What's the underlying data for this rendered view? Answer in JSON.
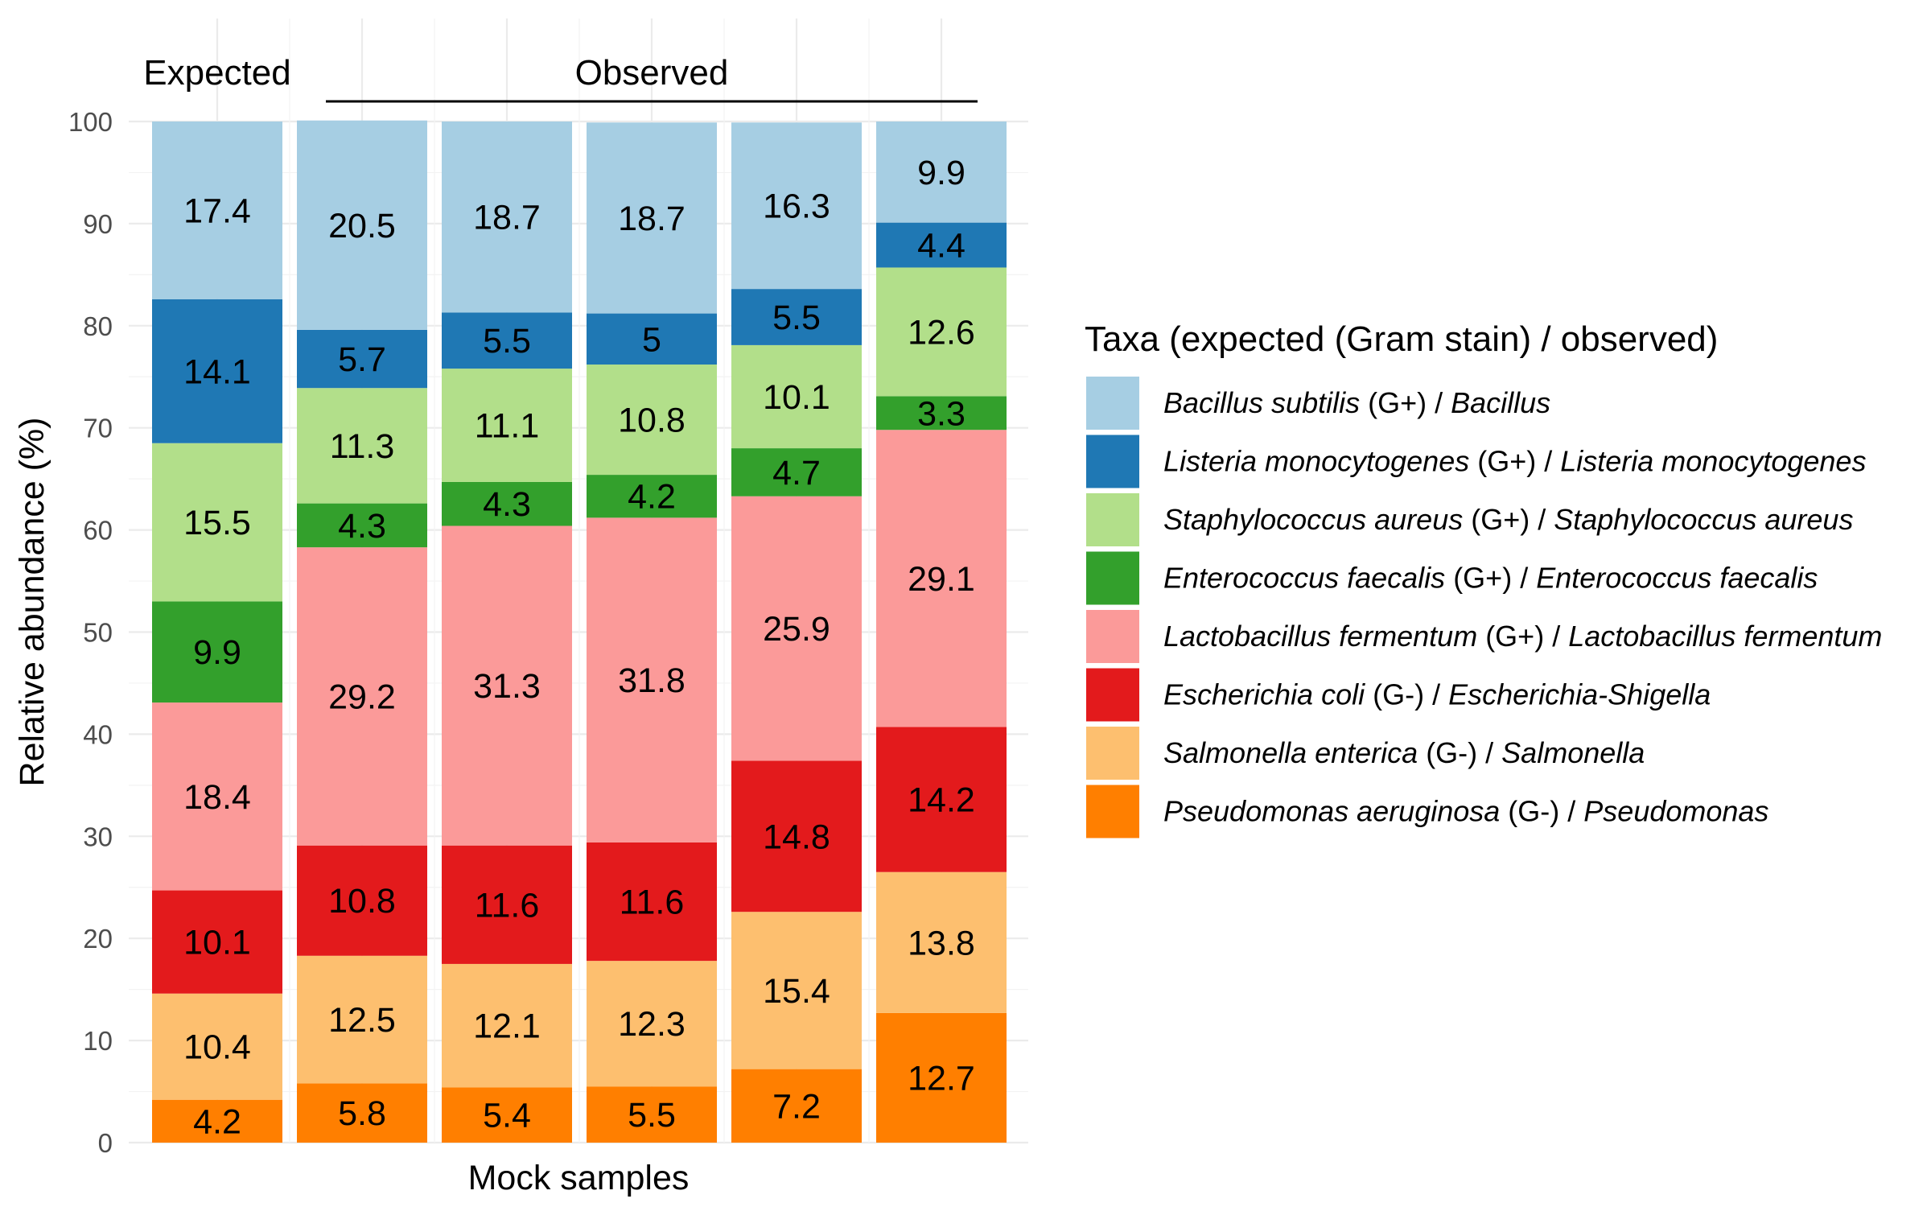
{
  "chart_data": {
    "type": "bar",
    "stacked": true,
    "x": [
      "",
      "",
      "",
      "",
      "",
      ""
    ],
    "xlabel": "Mock samples",
    "ylabel": "Relative abundance (%)",
    "ylim": [
      0,
      100
    ],
    "yticks": [
      0,
      10,
      20,
      30,
      40,
      50,
      60,
      70,
      80,
      90,
      100
    ],
    "grid": true,
    "legend_position": "right",
    "legend_title": "Taxa (expected (Gram stain) / observed)",
    "headers": [
      {
        "label": "Expected",
        "covers": [
          0,
          0
        ],
        "underline": false
      },
      {
        "label": "Observed",
        "covers": [
          1,
          5
        ],
        "underline": true
      }
    ],
    "series": [
      {
        "name": "Pseudomonas aeruginosa (G-) / Pseudomonas",
        "legend": {
          "a": "Pseudomonas aeruginosa",
          "b": " (G-) / ",
          "c": "Pseudomonas"
        },
        "color": "#FF7F00",
        "values": [
          4.2,
          5.8,
          5.4,
          5.5,
          7.2,
          12.7
        ]
      },
      {
        "name": "Salmonella enterica (G-) / Salmonella",
        "legend": {
          "a": "Salmonella enterica",
          "b": " (G-) / ",
          "c": "Salmonella"
        },
        "color": "#FDBF6F",
        "values": [
          10.4,
          12.5,
          12.1,
          12.3,
          15.4,
          13.8
        ]
      },
      {
        "name": "Escherichia coli (G-) / Escherichia-Shigella",
        "legend": {
          "a": "Escherichia coli",
          "b": " (G-) / ",
          "c": "Escherichia-Shigella"
        },
        "color": "#E31A1C",
        "values": [
          10.1,
          10.8,
          11.6,
          11.6,
          14.8,
          14.2
        ]
      },
      {
        "name": "Lactobacillus fermentum (G+) / Lactobacillus fermentum",
        "legend": {
          "a": "Lactobacillus fermentum",
          "b": " (G+) / ",
          "c": "Lactobacillus fermentum"
        },
        "color": "#FB9A99",
        "values": [
          18.4,
          29.2,
          31.3,
          31.8,
          25.9,
          29.1
        ]
      },
      {
        "name": "Enterococcus faecalis (G+) / Enterococcus faecalis",
        "legend": {
          "a": "Enterococcus faecalis",
          "b": " (G+) / ",
          "c": "Enterococcus faecalis"
        },
        "color": "#33A02C",
        "values": [
          9.9,
          4.3,
          4.3,
          4.2,
          4.7,
          3.3
        ]
      },
      {
        "name": "Staphylococcus aureus (G+) / Staphylococcus aureus",
        "legend": {
          "a": "Staphylococcus aureus",
          "b": " (G+) / ",
          "c": "Staphylococcus aureus"
        },
        "color": "#B2DF8A",
        "values": [
          15.5,
          11.3,
          11.1,
          10.8,
          10.1,
          12.6
        ]
      },
      {
        "name": "Listeria monocytogenes (G+) / Listeria monocytogenes",
        "legend": {
          "a": "Listeria monocytogenes",
          "b": " (G+) / ",
          "c": "Listeria monocytogenes"
        },
        "color": "#1F78B4",
        "values": [
          14.1,
          5.7,
          5.5,
          5.0,
          5.5,
          4.4
        ]
      },
      {
        "name": "Bacillus subtilis (G+) / Bacillus",
        "legend": {
          "a": "Bacillus subtilis",
          "b": " (G+) / ",
          "c": "Bacillus"
        },
        "color": "#A6CEE3",
        "values": [
          17.4,
          20.5,
          18.7,
          18.7,
          16.3,
          9.9
        ]
      }
    ]
  }
}
